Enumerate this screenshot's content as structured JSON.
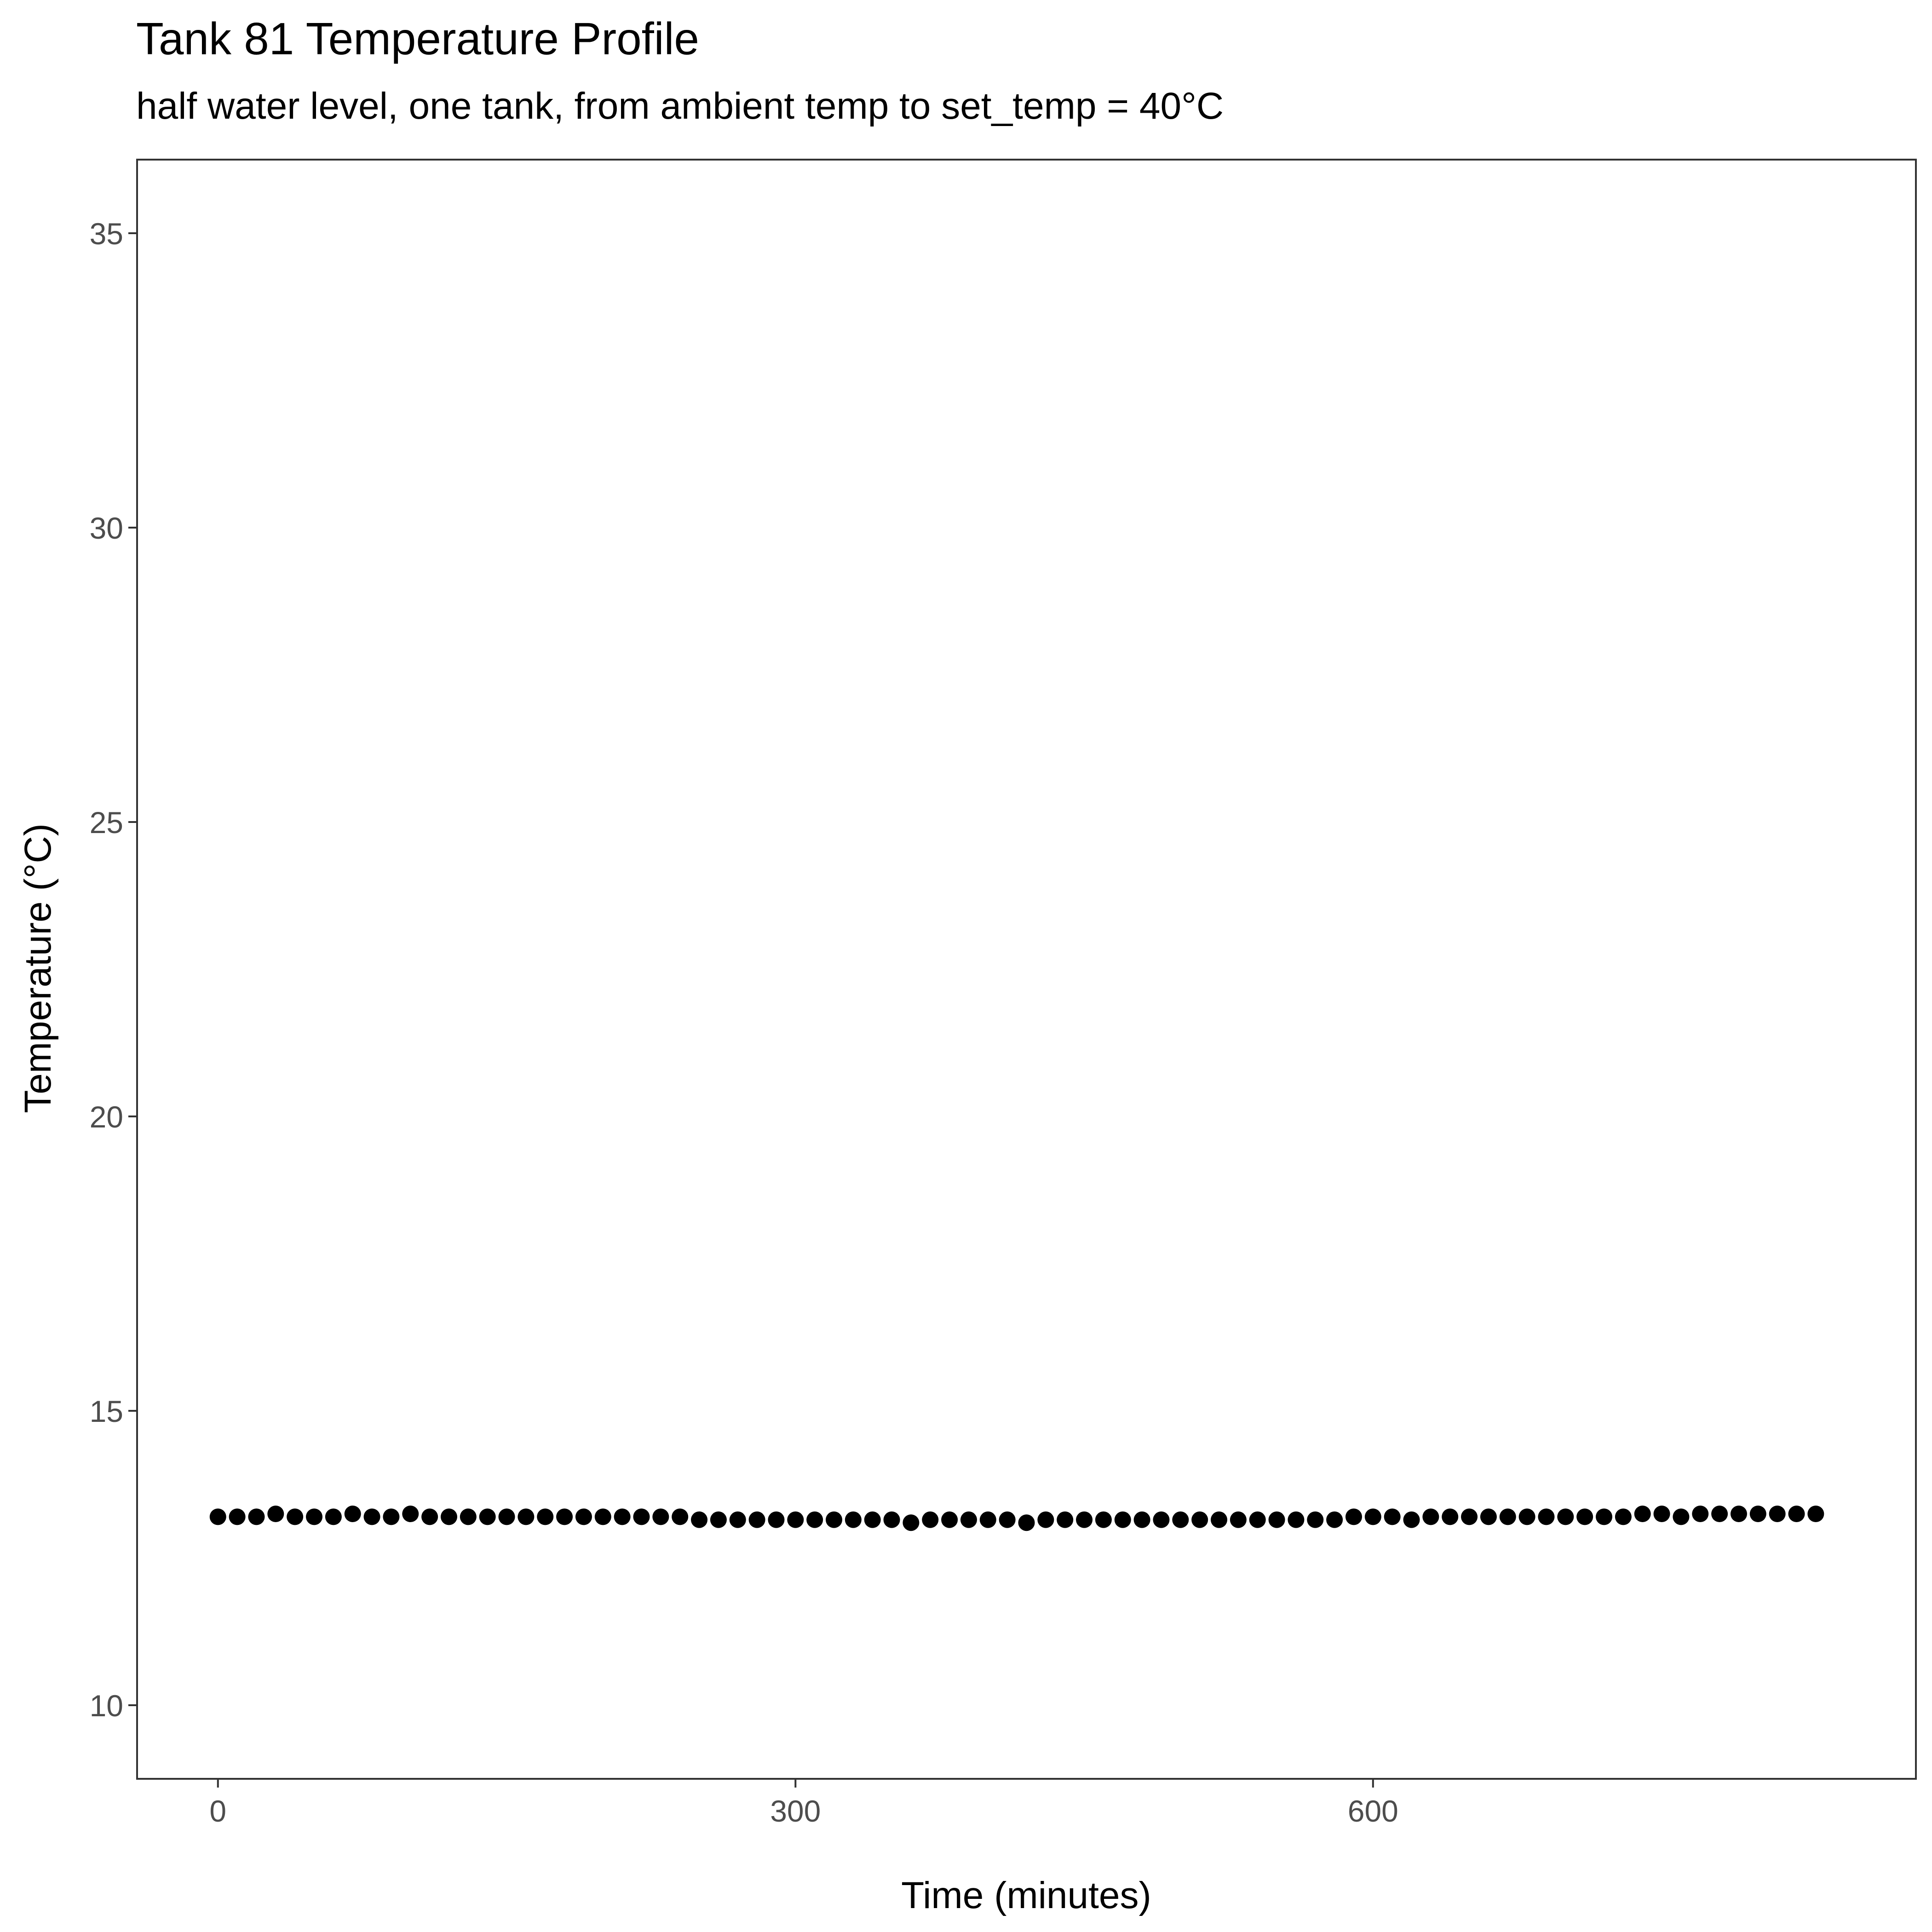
{
  "chart_data": {
    "type": "scatter",
    "title": "Tank 81 Temperature Profile",
    "subtitle": "half water level, one tank, from ambient temp to set_temp = 40°C",
    "xlabel": "Time (minutes)",
    "ylabel": "Temperature (°C)",
    "xlim": [
      -42,
      882
    ],
    "ylim": [
      8.75,
      36.25
    ],
    "x_ticks": [
      0,
      300,
      600
    ],
    "y_ticks": [
      10,
      15,
      20,
      25,
      30,
      35
    ],
    "grid": false,
    "point_color": "#000000",
    "series": [
      {
        "x": [
          0,
          10,
          20,
          30,
          40,
          50,
          60,
          70,
          80,
          90,
          100,
          110,
          120,
          130,
          140,
          150,
          160,
          170,
          180,
          190,
          200,
          210,
          220,
          230,
          240,
          250,
          260,
          270,
          280,
          290,
          300,
          310,
          320,
          330,
          340,
          350,
          360,
          370,
          380,
          390,
          400,
          410,
          420,
          430,
          440,
          450,
          460,
          470,
          480,
          490,
          500,
          510,
          520,
          530,
          540,
          550,
          560,
          570,
          580,
          590,
          600,
          610,
          620,
          630,
          640,
          650,
          660,
          670,
          680,
          690,
          700,
          710,
          720,
          730,
          740,
          750,
          760,
          770,
          780,
          790,
          800,
          810,
          820,
          830
        ],
        "y": [
          13.2,
          13.2,
          13.2,
          13.25,
          13.2,
          13.2,
          13.2,
          13.25,
          13.2,
          13.2,
          13.25,
          13.2,
          13.2,
          13.2,
          13.2,
          13.2,
          13.2,
          13.2,
          13.2,
          13.2,
          13.2,
          13.2,
          13.2,
          13.2,
          13.2,
          13.15,
          13.15,
          13.15,
          13.15,
          13.15,
          13.15,
          13.15,
          13.15,
          13.15,
          13.15,
          13.15,
          13.1,
          13.15,
          13.15,
          13.15,
          13.15,
          13.15,
          13.1,
          13.15,
          13.15,
          13.15,
          13.15,
          13.15,
          13.15,
          13.15,
          13.15,
          13.15,
          13.15,
          13.15,
          13.15,
          13.15,
          13.15,
          13.15,
          13.15,
          13.2,
          13.2,
          13.2,
          13.15,
          13.2,
          13.2,
          13.2,
          13.2,
          13.2,
          13.2,
          13.2,
          13.2,
          13.2,
          13.2,
          13.2,
          13.25,
          13.25,
          13.2,
          13.25,
          13.25,
          13.25,
          13.25,
          13.25,
          13.25,
          13.25
        ]
      }
    ]
  }
}
